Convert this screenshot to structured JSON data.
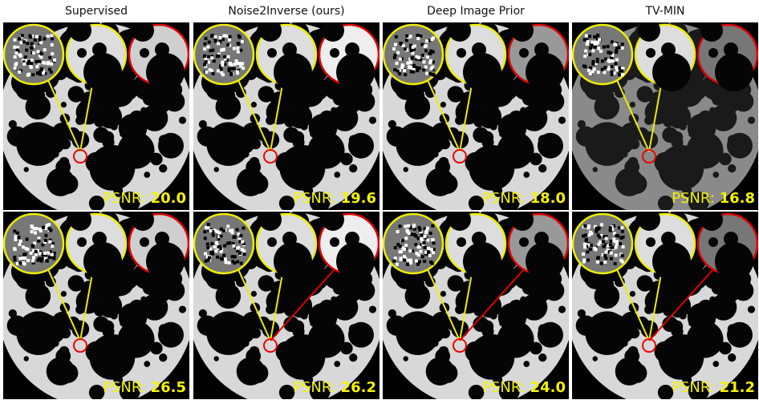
{
  "columns": [
    "Supervised",
    "Noise2Inverse (ours)",
    "Deep Image Prior",
    "TV-MIN"
  ],
  "psnr_label": "PSNR:",
  "rows": [
    {
      "psnr": [
        "20.0",
        "19.6",
        "18.0",
        "16.8"
      ]
    },
    {
      "psnr": [
        "26.5",
        "26.2",
        "24.0",
        "21.2"
      ]
    }
  ]
}
